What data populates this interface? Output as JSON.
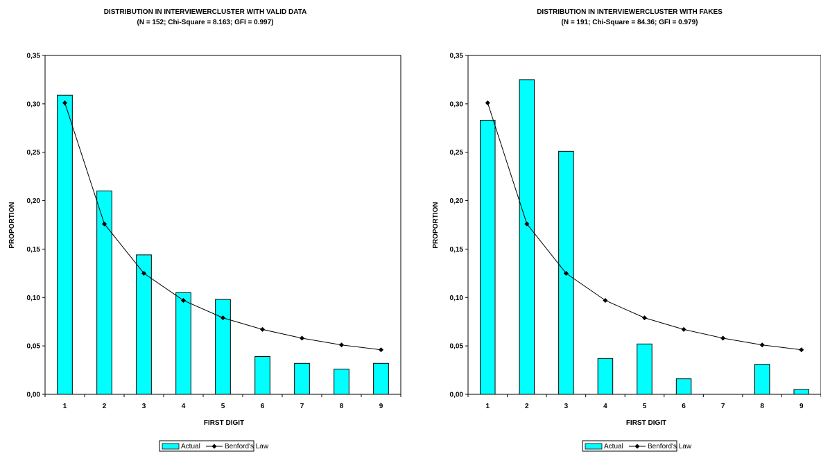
{
  "colors": {
    "bar_fill": "#00ffff",
    "bar_stroke": "#000000",
    "line": "#000000",
    "background": "#ffffff"
  },
  "chart_data": [
    {
      "type": "bar",
      "title": "DISTRIBUTION IN INTERVIEWERCLUSTER WITH VALID DATA",
      "subtitle": "(N = 152;  Chi-Square = 8.163; GFI = 0.997)",
      "xlabel": "FIRST DIGIT",
      "ylabel": "PROPORTION",
      "ylim": [
        0,
        0.35
      ],
      "yticks": [
        "0,00",
        "0,05",
        "0,10",
        "0,15",
        "0,20",
        "0,25",
        "0,30",
        "0,35"
      ],
      "categories": [
        "1",
        "2",
        "3",
        "4",
        "5",
        "6",
        "7",
        "8",
        "9"
      ],
      "series": [
        {
          "name": "Actual",
          "type": "bar",
          "values": [
            0.309,
            0.21,
            0.144,
            0.105,
            0.098,
            0.039,
            0.032,
            0.026,
            0.032
          ]
        },
        {
          "name": "Benford's Law",
          "type": "line",
          "values": [
            0.301,
            0.176,
            0.125,
            0.097,
            0.079,
            0.067,
            0.058,
            0.051,
            0.046
          ]
        }
      ],
      "grid": false,
      "legend": "bottom"
    },
    {
      "type": "bar",
      "title": "DISTRIBUTION IN INTERVIEWERCLUSTER WITH FAKES",
      "subtitle": "(N = 191; Chi-Square = 84.36; GFI = 0.979)",
      "xlabel": "FIRST DIGIT",
      "ylabel": "PROPORTION",
      "ylim": [
        0,
        0.35
      ],
      "yticks": [
        "0,00",
        "0,05",
        "0,10",
        "0,15",
        "0,20",
        "0,25",
        "0,30",
        "0,35"
      ],
      "categories": [
        "1",
        "2",
        "3",
        "4",
        "5",
        "6",
        "7",
        "8",
        "9"
      ],
      "series": [
        {
          "name": "Actual",
          "type": "bar",
          "values": [
            0.283,
            0.325,
            0.251,
            0.037,
            0.052,
            0.016,
            0,
            0.031,
            0.005
          ]
        },
        {
          "name": "Benford's Law",
          "type": "line",
          "values": [
            0.301,
            0.176,
            0.125,
            0.097,
            0.079,
            0.067,
            0.058,
            0.051,
            0.046
          ]
        }
      ],
      "grid": false,
      "legend": "bottom"
    }
  ]
}
